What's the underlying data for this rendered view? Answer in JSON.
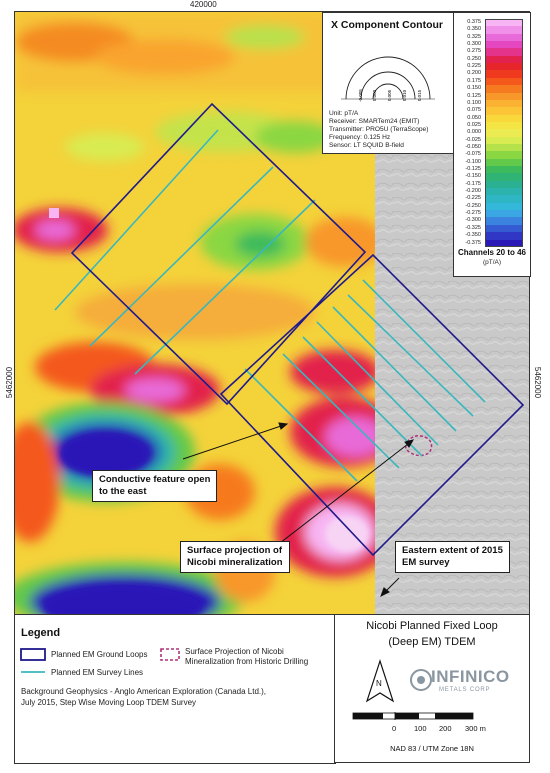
{
  "coordinates": {
    "easting": "420000",
    "northing_left": "5462000",
    "northing_right": "5462000"
  },
  "inset": {
    "title": "X Component Contour",
    "unit": "Unit: pT/A",
    "receiver": "Receiver: SMARTem24 (EMIT)",
    "transmitter": "Transmitter: PRO5U (TerraScope)",
    "frequency": "Frequency: 0.125 Hz",
    "sensor": "Sensor: LT SQUID B-field",
    "profile_ticks": [
      "-0.005",
      "0.000",
      "0.005",
      "0.010",
      "0.015"
    ]
  },
  "color_scale": {
    "ticks": [
      "0.375",
      "0.350",
      "0.325",
      "0.300",
      "0.275",
      "0.250",
      "0.225",
      "0.200",
      "0.175",
      "0.150",
      "0.125",
      "0.100",
      "0.075",
      "0.050",
      "0.025",
      "0.000",
      "-0.025",
      "-0.050",
      "-0.075",
      "-0.100",
      "-0.125",
      "-0.150",
      "-0.175",
      "-0.200",
      "-0.225",
      "-0.250",
      "-0.275",
      "-0.300",
      "-0.325",
      "-0.350",
      "-0.375"
    ],
    "colors": [
      "#f7b6f3",
      "#f090e8",
      "#e86ad8",
      "#e447c0",
      "#e3338a",
      "#e2224c",
      "#e6262b",
      "#ef3a1f",
      "#f4591b",
      "#f67a1f",
      "#f8972a",
      "#fbb232",
      "#fcc537",
      "#f9d83c",
      "#f4e444",
      "#ecec52",
      "#d8ec51",
      "#b5e24b",
      "#8ad743",
      "#62c94a",
      "#3dbb5c",
      "#2fb475",
      "#2bb192",
      "#2cb3ae",
      "#2fb6c4",
      "#34b8d9",
      "#3aa7e4",
      "#3a83de",
      "#355bd2",
      "#2f37c4",
      "#2a19b7"
    ],
    "title": "Channels 20 to 46",
    "unit": "(pT/A)"
  },
  "callouts": {
    "conductive": [
      "Conductive feature open",
      "to the east"
    ],
    "surface": [
      "Surface projection of",
      "Nicobi mineralization"
    ],
    "eastern": [
      "Eastern extent of 2015",
      "EM survey"
    ]
  },
  "legend": {
    "title": "Legend",
    "loops": "Planned EM Ground Loops",
    "lines": "Planned EM Survey Lines",
    "projection": [
      "Surface Projection of Nicobi",
      "Mineralization from Historic Drilling"
    ],
    "source": [
      "Background Geophysics - Anglo American Exploration (Canada Ltd.),",
      "July 2015, Step Wise Moving Loop TDEM Survey"
    ]
  },
  "map_title": [
    "Nicobi Planned Fixed Loop",
    "(Deep EM) TDEM"
  ],
  "north_arrow": "N",
  "logo": {
    "name": "INFINICO",
    "sub": "METALS CORP"
  },
  "scale_bar": {
    "labels": [
      "0",
      "100",
      "200",
      "300 m"
    ],
    "datum": "NAD 83 / UTM Zone 18N"
  },
  "colors": {
    "loop": "#1f1a8c",
    "survey_line": "#3ab7bd",
    "projection": "#b0307a",
    "hillshade": "#c8c8c8"
  }
}
